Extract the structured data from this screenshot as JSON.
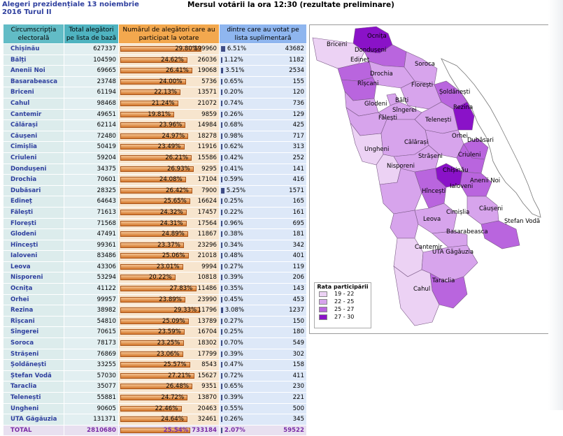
{
  "header": {
    "left_title": "Alegeri prezidențiale 13 noiembrie 2016 Turul II",
    "right_title": "Mersul votării la ora 12:30 (rezultate preliminare)"
  },
  "table": {
    "columns": [
      "Circumscripția electorală",
      "Total alegători pe lista de bază",
      "Numărul de alegători care au participat la votare",
      "dintre care au votat pe lista suplimentară"
    ],
    "rows": [
      {
        "name": "Chișinău",
        "total": "627337",
        "pct": "29.80%",
        "voted": "199960",
        "sup_pct": "6.51%",
        "sup": "43682"
      },
      {
        "name": "Bălți",
        "total": "104590",
        "pct": "24.62%",
        "voted": "26036",
        "sup_pct": "1.12%",
        "sup": "1182"
      },
      {
        "name": "Anenii Noi",
        "total": "69665",
        "pct": "26.41%",
        "voted": "19068",
        "sup_pct": "3.51%",
        "sup": "2534"
      },
      {
        "name": "Basarabeasca",
        "total": "23748",
        "pct": "24.00%",
        "voted": "5736",
        "sup_pct": "0.65%",
        "sup": "155"
      },
      {
        "name": "Briceni",
        "total": "61194",
        "pct": "22.13%",
        "voted": "13571",
        "sup_pct": "0.20%",
        "sup": "120"
      },
      {
        "name": "Cahul",
        "total": "98468",
        "pct": "21.24%",
        "voted": "21072",
        "sup_pct": "0.74%",
        "sup": "736"
      },
      {
        "name": "Cantemir",
        "total": "49651",
        "pct": "19.81%",
        "voted": "9859",
        "sup_pct": "0.26%",
        "sup": "129"
      },
      {
        "name": "Călărași",
        "total": "62114",
        "pct": "23.96%",
        "voted": "14984",
        "sup_pct": "0.68%",
        "sup": "425"
      },
      {
        "name": "Căușeni",
        "total": "72480",
        "pct": "24.97%",
        "voted": "18278",
        "sup_pct": "0.98%",
        "sup": "717"
      },
      {
        "name": "Cimișlia",
        "total": "50419",
        "pct": "23.49%",
        "voted": "11916",
        "sup_pct": "0.62%",
        "sup": "313"
      },
      {
        "name": "Criuleni",
        "total": "59204",
        "pct": "26.21%",
        "voted": "15586",
        "sup_pct": "0.42%",
        "sup": "252"
      },
      {
        "name": "Dondușeni",
        "total": "34375",
        "pct": "26.93%",
        "voted": "9295",
        "sup_pct": "0.41%",
        "sup": "141"
      },
      {
        "name": "Drochia",
        "total": "70601",
        "pct": "24.08%",
        "voted": "17104",
        "sup_pct": "0.59%",
        "sup": "416"
      },
      {
        "name": "Dubăsari",
        "total": "28325",
        "pct": "26.42%",
        "voted": "7900",
        "sup_pct": "5.25%",
        "sup": "1571"
      },
      {
        "name": "Edineț",
        "total": "64643",
        "pct": "25.65%",
        "voted": "16624",
        "sup_pct": "0.25%",
        "sup": "165"
      },
      {
        "name": "Fălești",
        "total": "71613",
        "pct": "24.32%",
        "voted": "17457",
        "sup_pct": "0.22%",
        "sup": "161"
      },
      {
        "name": "Florești",
        "total": "71568",
        "pct": "24.31%",
        "voted": "17564",
        "sup_pct": "0.96%",
        "sup": "695"
      },
      {
        "name": "Glodeni",
        "total": "47491",
        "pct": "24.89%",
        "voted": "11867",
        "sup_pct": "0.38%",
        "sup": "181"
      },
      {
        "name": "Hîncești",
        "total": "99361",
        "pct": "23.37%",
        "voted": "23296",
        "sup_pct": "0.34%",
        "sup": "342"
      },
      {
        "name": "Ialoveni",
        "total": "83486",
        "pct": "25.06%",
        "voted": "21018",
        "sup_pct": "0.48%",
        "sup": "401"
      },
      {
        "name": "Leova",
        "total": "43306",
        "pct": "23.01%",
        "voted": "9994",
        "sup_pct": "0.27%",
        "sup": "119"
      },
      {
        "name": "Nisporeni",
        "total": "53294",
        "pct": "20.22%",
        "voted": "10818",
        "sup_pct": "0.39%",
        "sup": "206"
      },
      {
        "name": "Ocnița",
        "total": "41122",
        "pct": "27.83%",
        "voted": "11486",
        "sup_pct": "0.35%",
        "sup": "143"
      },
      {
        "name": "Orhei",
        "total": "99957",
        "pct": "23.89%",
        "voted": "23990",
        "sup_pct": "0.45%",
        "sup": "453"
      },
      {
        "name": "Rezina",
        "total": "38982",
        "pct": "29.33%",
        "voted": "11796",
        "sup_pct": "3.08%",
        "sup": "1237"
      },
      {
        "name": "Rîșcani",
        "total": "54810",
        "pct": "25.09%",
        "voted": "13789",
        "sup_pct": "0.27%",
        "sup": "150"
      },
      {
        "name": "Sîngerei",
        "total": "70615",
        "pct": "23.59%",
        "voted": "16704",
        "sup_pct": "0.25%",
        "sup": "180"
      },
      {
        "name": "Soroca",
        "total": "78173",
        "pct": "23.25%",
        "voted": "18302",
        "sup_pct": "0.70%",
        "sup": "549"
      },
      {
        "name": "Strășeni",
        "total": "76869",
        "pct": "23.06%",
        "voted": "17799",
        "sup_pct": "0.39%",
        "sup": "302"
      },
      {
        "name": "Șoldănești",
        "total": "33255",
        "pct": "25.57%",
        "voted": "8543",
        "sup_pct": "0.47%",
        "sup": "158"
      },
      {
        "name": "Ștefan Vodă",
        "total": "57030",
        "pct": "27.21%",
        "voted": "15627",
        "sup_pct": "0.72%",
        "sup": "411"
      },
      {
        "name": "Taraclia",
        "total": "35077",
        "pct": "26.48%",
        "voted": "9351",
        "sup_pct": "0.65%",
        "sup": "230"
      },
      {
        "name": "Telenești",
        "total": "55881",
        "pct": "24.72%",
        "voted": "13870",
        "sup_pct": "0.39%",
        "sup": "221"
      },
      {
        "name": "Ungheni",
        "total": "90605",
        "pct": "22.46%",
        "voted": "20463",
        "sup_pct": "0.55%",
        "sup": "500"
      },
      {
        "name": "UTA Găgăuzia",
        "total": "131371",
        "pct": "24.64%",
        "voted": "32461",
        "sup_pct": "0.26%",
        "sup": "345"
      }
    ],
    "total": {
      "name": "TOTAL",
      "total": "2810680",
      "pct": "25.54%",
      "voted": "733184",
      "sup_pct": "2.07%",
      "sup": "59522"
    }
  },
  "legend": {
    "title": "Rata participării",
    "items": [
      {
        "label": "19 - 22",
        "color": "#ecd2f4"
      },
      {
        "label": "22 - 25",
        "color": "#d7a4ec"
      },
      {
        "label": "25 - 27",
        "color": "#b965de"
      },
      {
        "label": "27 - 30",
        "color": "#8a12c8"
      }
    ]
  },
  "map": {
    "districts": [
      {
        "name": "Ocnița",
        "level": 4
      },
      {
        "name": "Briceni",
        "level": 1
      },
      {
        "name": "Dondușeni",
        "level": 3
      },
      {
        "name": "Edineț",
        "level": 3
      },
      {
        "name": "Soroca",
        "level": 2
      },
      {
        "name": "Drochia",
        "level": 2
      },
      {
        "name": "Rîșcani",
        "level": 3
      },
      {
        "name": "Florești",
        "level": 2
      },
      {
        "name": "Șoldănești",
        "level": 3
      },
      {
        "name": "Bălți",
        "level": 2
      },
      {
        "name": "Glodeni",
        "level": 2
      },
      {
        "name": "Rezina",
        "level": 4
      },
      {
        "name": "Sîngerei",
        "level": 2
      },
      {
        "name": "Fălești",
        "level": 2
      },
      {
        "name": "Telenești",
        "level": 2
      },
      {
        "name": "Orhei",
        "level": 2
      },
      {
        "name": "Dubăsari",
        "level": 3
      },
      {
        "name": "Ungheni",
        "level": 1
      },
      {
        "name": "Călărași",
        "level": 2
      },
      {
        "name": "Criuleni",
        "level": 3
      },
      {
        "name": "Strășeni",
        "level": 2
      },
      {
        "name": "Nisporeni",
        "level": 1
      },
      {
        "name": "Chișinău",
        "level": 4
      },
      {
        "name": "Anenii Noi",
        "level": 3
      },
      {
        "name": "Hîncești",
        "level": 2
      },
      {
        "name": "Ialoveni",
        "level": 3
      },
      {
        "name": "Căușeni",
        "level": 2
      },
      {
        "name": "Cimișlia",
        "level": 2
      },
      {
        "name": "Leova",
        "level": 2
      },
      {
        "name": "Ștefan Vodă",
        "level": 3
      },
      {
        "name": "Basarabeasca",
        "level": 2
      },
      {
        "name": "Cantemir",
        "level": 1
      },
      {
        "name": "UTA Găgăuzia",
        "level": 2
      },
      {
        "name": "Taraclia",
        "level": 3
      },
      {
        "name": "Cahul",
        "level": 1
      }
    ]
  }
}
